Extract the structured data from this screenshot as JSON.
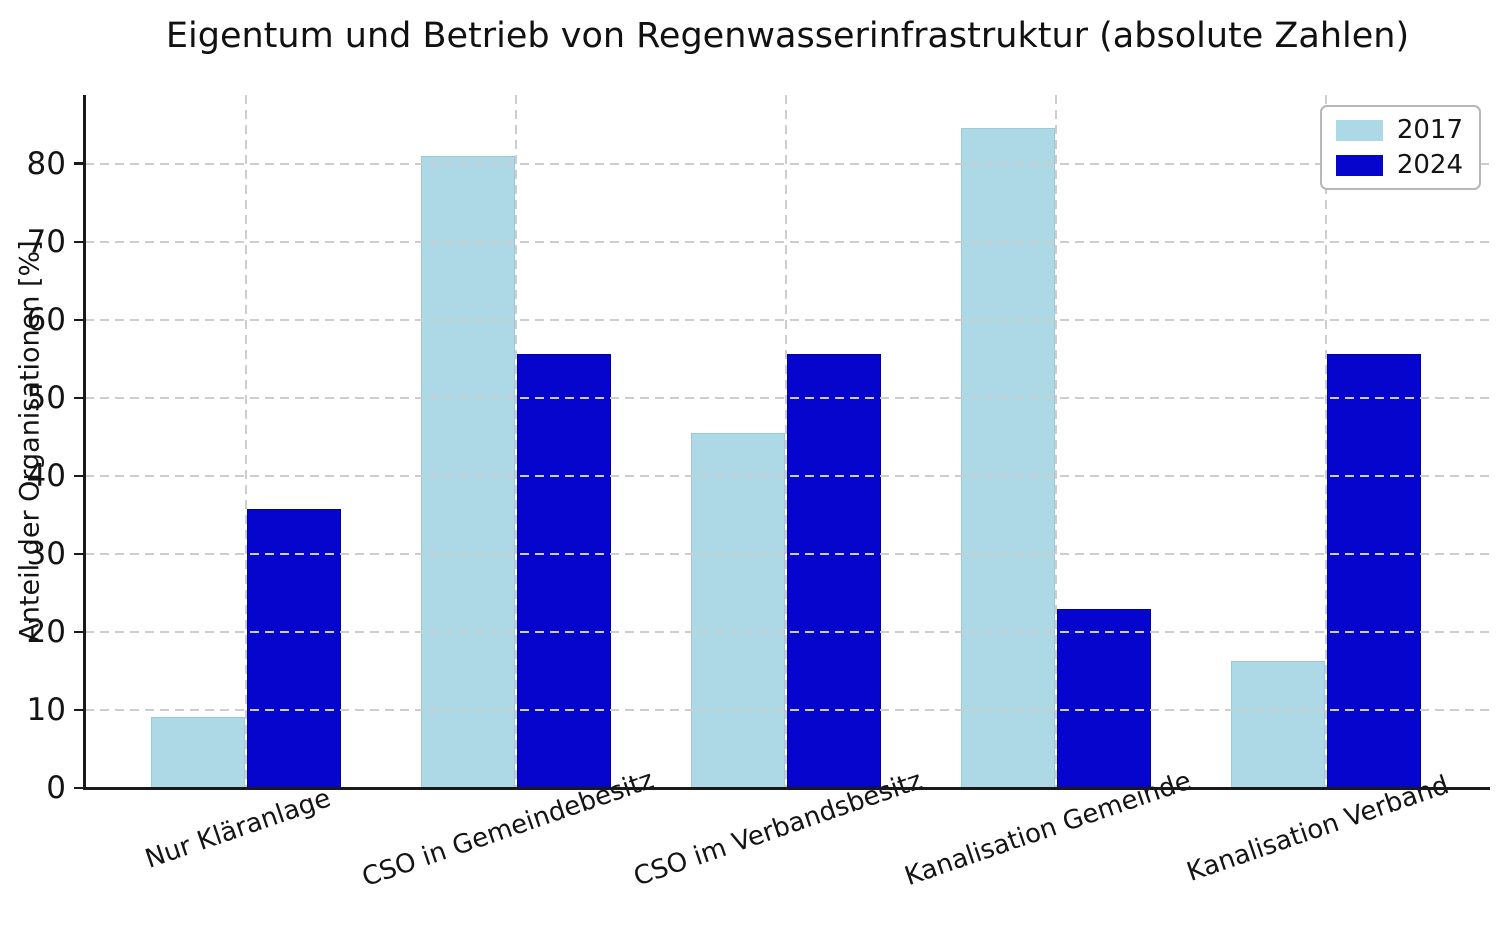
{
  "chart_data": {
    "type": "bar",
    "title": "Eigentum und Betrieb von Regenwasserinfrastruktur (absolute Zahlen)",
    "xlabel": "",
    "ylabel": "Anteil der Organisationen [%]",
    "categories": [
      "Nur Kläranlage",
      "CSO in Gemeindebesitz",
      "CSO im Verbandsbesitz",
      "Kanalisation Gemeinde",
      "Kanalisation Verband"
    ],
    "series": [
      {
        "name": "2017",
        "color": "#ADD8E6",
        "edge_color": "#9CC9DB",
        "values": [
          9.1,
          81.0,
          45.5,
          84.6,
          16.3
        ]
      },
      {
        "name": "2024",
        "color": "#0505CE",
        "edge_color": "#0000A6",
        "values": [
          35.7,
          55.6,
          55.6,
          22.9,
          55.6
        ]
      }
    ],
    "yticks": [
      0,
      10,
      20,
      30,
      40,
      50,
      60,
      70,
      80
    ],
    "ylim": [
      0,
      88.8
    ],
    "grid": true,
    "grid_style": "dashed",
    "grid_color": "#cdcdcd",
    "grid_on_top": true,
    "legend_position": "upper right",
    "background": "#ffffff"
  }
}
